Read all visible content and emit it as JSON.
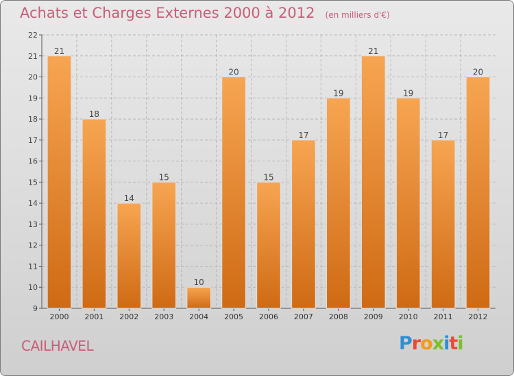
{
  "header": {
    "title": "Achats et Charges Externes 2000 à 2012",
    "unit": "(en milliers d'€)"
  },
  "commune": "CAILHAVEL",
  "logo": {
    "letters": [
      "P",
      "r",
      "o",
      "x",
      "i",
      "t",
      "i"
    ]
  },
  "colors": {
    "bar_top": "#f7a552",
    "bar_bottom": "#cf6a14",
    "title": "#c75e78",
    "grid": "#b7b7b7"
  },
  "chart_data": {
    "type": "bar",
    "categories": [
      "2000",
      "2001",
      "2002",
      "2003",
      "2004",
      "2005",
      "2006",
      "2007",
      "2008",
      "2009",
      "2010",
      "2011",
      "2012"
    ],
    "values": [
      21,
      18,
      14,
      15,
      10,
      20,
      15,
      17,
      19,
      21,
      19,
      17,
      20
    ],
    "data_labels": [
      "21",
      "18",
      "14",
      "15",
      "10",
      "20",
      "15",
      "17",
      "19",
      "21",
      "19",
      "17",
      "20"
    ],
    "title": "Achats et Charges Externes 2000 à 2012",
    "subtitle": "(en milliers d'€)",
    "xlabel": "",
    "ylabel": "",
    "ylim": [
      9,
      22
    ],
    "yticks": [
      9,
      10,
      11,
      12,
      13,
      14,
      15,
      16,
      17,
      18,
      19,
      20,
      21,
      22
    ],
    "ytick_labels": [
      "9",
      "10",
      "11",
      "12",
      "13",
      "14",
      "15",
      "16",
      "17",
      "18",
      "19",
      "20",
      "21",
      "22"
    ],
    "grid": true
  }
}
